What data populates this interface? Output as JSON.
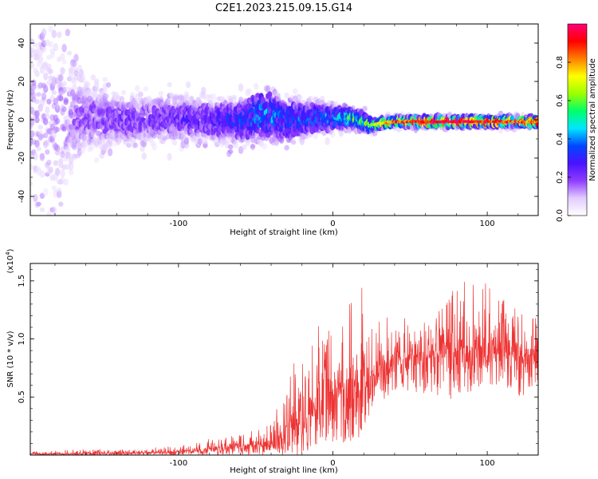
{
  "title": "C2E1.2023.215.09.15.G14",
  "chart_data": [
    {
      "type": "heatmap",
      "xlabel": "Height of straight line (km)",
      "ylabel": "Frequency (Hz)",
      "xlim": [
        -196,
        133
      ],
      "ylim": [
        -50,
        50
      ],
      "x_ticks": [
        -100,
        0,
        100
      ],
      "x_tick_labels": [
        "-100",
        "0",
        "100"
      ],
      "y_ticks": [
        -40,
        -20,
        0,
        20,
        40
      ],
      "y_tick_labels": [
        "-40",
        "-20",
        "0",
        "20",
        "40"
      ],
      "colorbar": {
        "label": "Normalized spectral amplitude",
        "range": [
          0.0,
          1.0
        ],
        "ticks": [
          0.0,
          0.2,
          0.4,
          0.6,
          0.8
        ],
        "tick_labels": [
          "0.0",
          "0.2",
          "0.4",
          "0.6",
          "0.8"
        ],
        "colormap": [
          "#ffffff",
          "#e2ccff",
          "#8f3cff",
          "#4a12ff",
          "#0047ff",
          "#00e6ff",
          "#00ff6a",
          "#9dff00",
          "#ffff00",
          "#ff7f00",
          "#ff0000",
          "#ff0077"
        ]
      },
      "description_points": {
        "x": [
          -180,
          -160,
          -140,
          -120,
          -100,
          -80,
          -60,
          -45,
          -30,
          -15,
          0,
          10,
          20,
          25,
          30,
          40,
          60,
          80,
          100,
          120,
          133
        ],
        "center_freq": [
          2,
          1,
          0,
          0,
          1,
          0,
          -1,
          3,
          0,
          1,
          1,
          1,
          -1,
          -3,
          -2,
          -1,
          -1,
          -1,
          -1,
          -1,
          -1
        ],
        "spread": [
          40,
          18,
          12,
          11,
          11,
          10,
          10,
          12,
          11,
          8,
          6,
          5,
          4,
          3,
          2,
          2,
          2,
          2,
          2,
          2,
          2
        ],
        "amplitude": [
          0.12,
          0.15,
          0.18,
          0.18,
          0.2,
          0.22,
          0.28,
          0.35,
          0.3,
          0.3,
          0.35,
          0.45,
          0.5,
          0.55,
          0.6,
          0.75,
          0.8,
          0.85,
          0.8,
          0.75,
          0.75
        ]
      }
    },
    {
      "type": "line",
      "xlabel": "Height of straight line (km)",
      "ylabel": "SNR (10 * v/v)",
      "y_multiplier_label": "(x10",
      "y_multiplier_exp": "4",
      "y_multiplier_close": ")",
      "xlim": [
        -196,
        133
      ],
      "ylim": [
        0.0,
        1.65
      ],
      "x_ticks": [
        -100,
        0,
        100
      ],
      "x_tick_labels": [
        "-100",
        "0",
        "100"
      ],
      "y_ticks": [
        0.5,
        1.0,
        1.5
      ],
      "y_tick_labels": [
        "0.5",
        "1.0",
        "1.5"
      ],
      "color": "#ee3333",
      "x": [
        -196,
        -180,
        -160,
        -140,
        -120,
        -100,
        -90,
        -80,
        -70,
        -60,
        -50,
        -40,
        -35,
        -30,
        -25,
        -20,
        -15,
        -10,
        -5,
        0,
        5,
        10,
        15,
        20,
        25,
        30,
        35,
        40,
        50,
        60,
        70,
        80,
        90,
        100,
        110,
        120,
        133
      ],
      "base": [
        0.01,
        0.01,
        0.01,
        0.015,
        0.02,
        0.03,
        0.04,
        0.05,
        0.06,
        0.07,
        0.08,
        0.1,
        0.13,
        0.17,
        0.22,
        0.28,
        0.35,
        0.42,
        0.48,
        0.52,
        0.55,
        0.58,
        0.6,
        0.62,
        0.65,
        0.7,
        0.75,
        0.8,
        0.85,
        0.88,
        0.9,
        0.9,
        0.9,
        0.88,
        0.86,
        0.85,
        0.88
      ],
      "peak": [
        0.03,
        0.04,
        0.05,
        0.05,
        0.06,
        0.08,
        0.1,
        0.14,
        0.16,
        0.18,
        0.22,
        0.3,
        0.45,
        0.6,
        0.8,
        1.02,
        0.95,
        1.2,
        1.05,
        1.15,
        1.25,
        1.3,
        1.42,
        1.45,
        1.3,
        1.15,
        1.2,
        1.25,
        1.18,
        1.2,
        1.3,
        1.45,
        1.55,
        1.5,
        1.35,
        1.25,
        1.2
      ],
      "trough": [
        0.0,
        0.0,
        0.0,
        0.0,
        0.0,
        0.0,
        0.0,
        0.0,
        0.0,
        0.0,
        0.0,
        0.0,
        0.0,
        0.0,
        0.0,
        0.0,
        0.05,
        0.1,
        0.05,
        0.05,
        0.1,
        0.1,
        0.12,
        0.2,
        0.4,
        0.45,
        0.5,
        0.55,
        0.55,
        0.5,
        0.45,
        0.5,
        0.55,
        0.6,
        0.6,
        0.5,
        0.5
      ]
    }
  ]
}
